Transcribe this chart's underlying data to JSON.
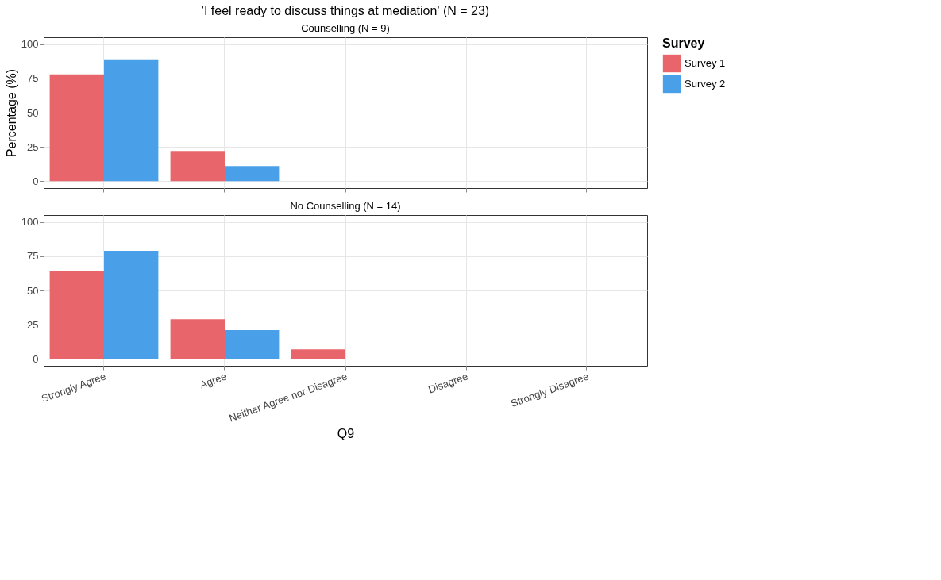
{
  "chart_data": [
    {
      "type": "bar",
      "title": "'I feel ready to discuss things at  mediation' (N = 23)",
      "subtitle": "Counselling (N = 9)",
      "ylabel": "Percentage (%)",
      "legend_title": "Survey",
      "categories": [
        "Strongly Agree",
        "Agree",
        "Neither Agree nor Disagree",
        "Disagree",
        "Strongly Disagree"
      ],
      "series": [
        {
          "name": "Survey 1",
          "color": "#e8666b",
          "values": [
            78,
            22,
            null,
            null,
            null
          ]
        },
        {
          "name": "Survey 2",
          "color": "#4aa0e8",
          "values": [
            89,
            11,
            null,
            null,
            null
          ]
        }
      ],
      "ylim": [
        -5,
        105
      ],
      "yticks": [
        0,
        25,
        50,
        75,
        100
      ],
      "grid": true,
      "legend": "right",
      "tick_labels": "y"
    },
    {
      "type": "bar",
      "subtitle": "No Counselling (N = 14)",
      "xlabel": "Q9",
      "categories": [
        "Strongly Agree",
        "Agree",
        "Neither Agree nor Disagree",
        "Disagree",
        "Strongly Disagree"
      ],
      "series": [
        {
          "name": "Survey 1",
          "color": "#e8666b",
          "values": [
            64,
            29,
            7,
            null,
            null
          ]
        },
        {
          "name": "Survey 2",
          "color": "#4aa0e8",
          "values": [
            79,
            21,
            null,
            null,
            null
          ]
        }
      ],
      "ylim": [
        -5,
        105
      ],
      "yticks": [
        0,
        25,
        50,
        75,
        100
      ],
      "grid": true
    }
  ]
}
